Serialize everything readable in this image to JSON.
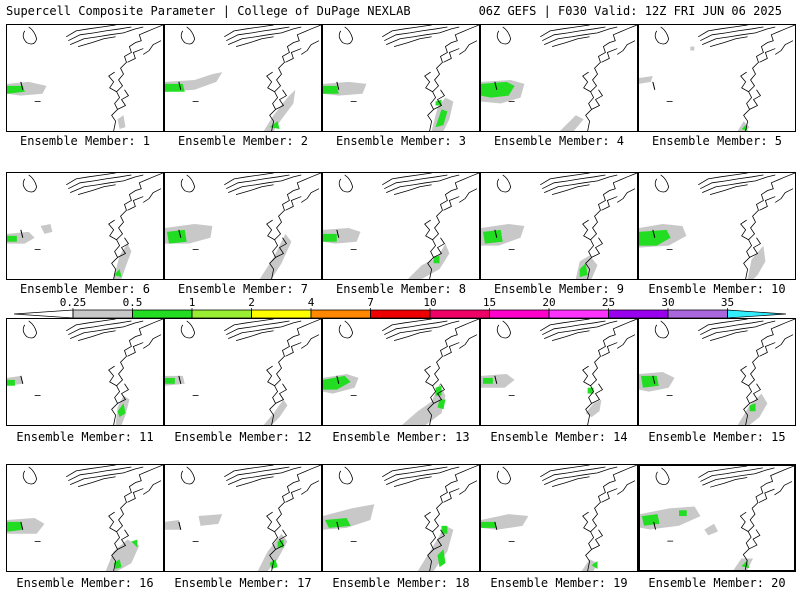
{
  "header": {
    "left": "Supercell Composite Parameter | College of DuPage NEXLAB",
    "right": "06Z GEFS | F030 Valid: 12Z FRI JUN 06 2025"
  },
  "colorbar": {
    "levels": [
      "0.25",
      "0.5",
      "1",
      "2",
      "4",
      "7",
      "10",
      "15",
      "20",
      "25",
      "30",
      "35"
    ],
    "colors": [
      "#ffffff",
      "#c8c8c8",
      "#22dd22",
      "#99ee33",
      "#ffff00",
      "#ff8800",
      "#ee0000",
      "#ee0066",
      "#ff00cc",
      "#ff33ff",
      "#9900ee",
      "#aa66dd",
      "#33eeff"
    ]
  },
  "label_prefix": "Ensemble Member: ",
  "members": [
    {
      "label": "Ensemble Member: 1",
      "highlight": false
    },
    {
      "label": "Ensemble Member: 2",
      "highlight": false
    },
    {
      "label": "Ensemble Member: 3",
      "highlight": false
    },
    {
      "label": "Ensemble Member: 4",
      "highlight": false
    },
    {
      "label": "Ensemble Member: 5",
      "highlight": false
    },
    {
      "label": "Ensemble Member: 6",
      "highlight": false
    },
    {
      "label": "Ensemble Member: 7",
      "highlight": false
    },
    {
      "label": "Ensemble Member: 8",
      "highlight": false
    },
    {
      "label": "Ensemble Member: 9",
      "highlight": false
    },
    {
      "label": "Ensemble Member: 10",
      "highlight": false
    },
    {
      "label": "Ensemble Member: 11",
      "highlight": false
    },
    {
      "label": "Ensemble Member: 12",
      "highlight": false
    },
    {
      "label": "Ensemble Member: 13",
      "highlight": false
    },
    {
      "label": "Ensemble Member: 14",
      "highlight": false
    },
    {
      "label": "Ensemble Member: 15",
      "highlight": false
    },
    {
      "label": "Ensemble Member: 16",
      "highlight": false
    },
    {
      "label": "Ensemble Member: 17",
      "highlight": false
    },
    {
      "label": "Ensemble Member: 18",
      "highlight": false
    },
    {
      "label": "Ensemble Member: 19",
      "highlight": false
    },
    {
      "label": "Ensemble Member: 20",
      "highlight": true
    }
  ]
}
